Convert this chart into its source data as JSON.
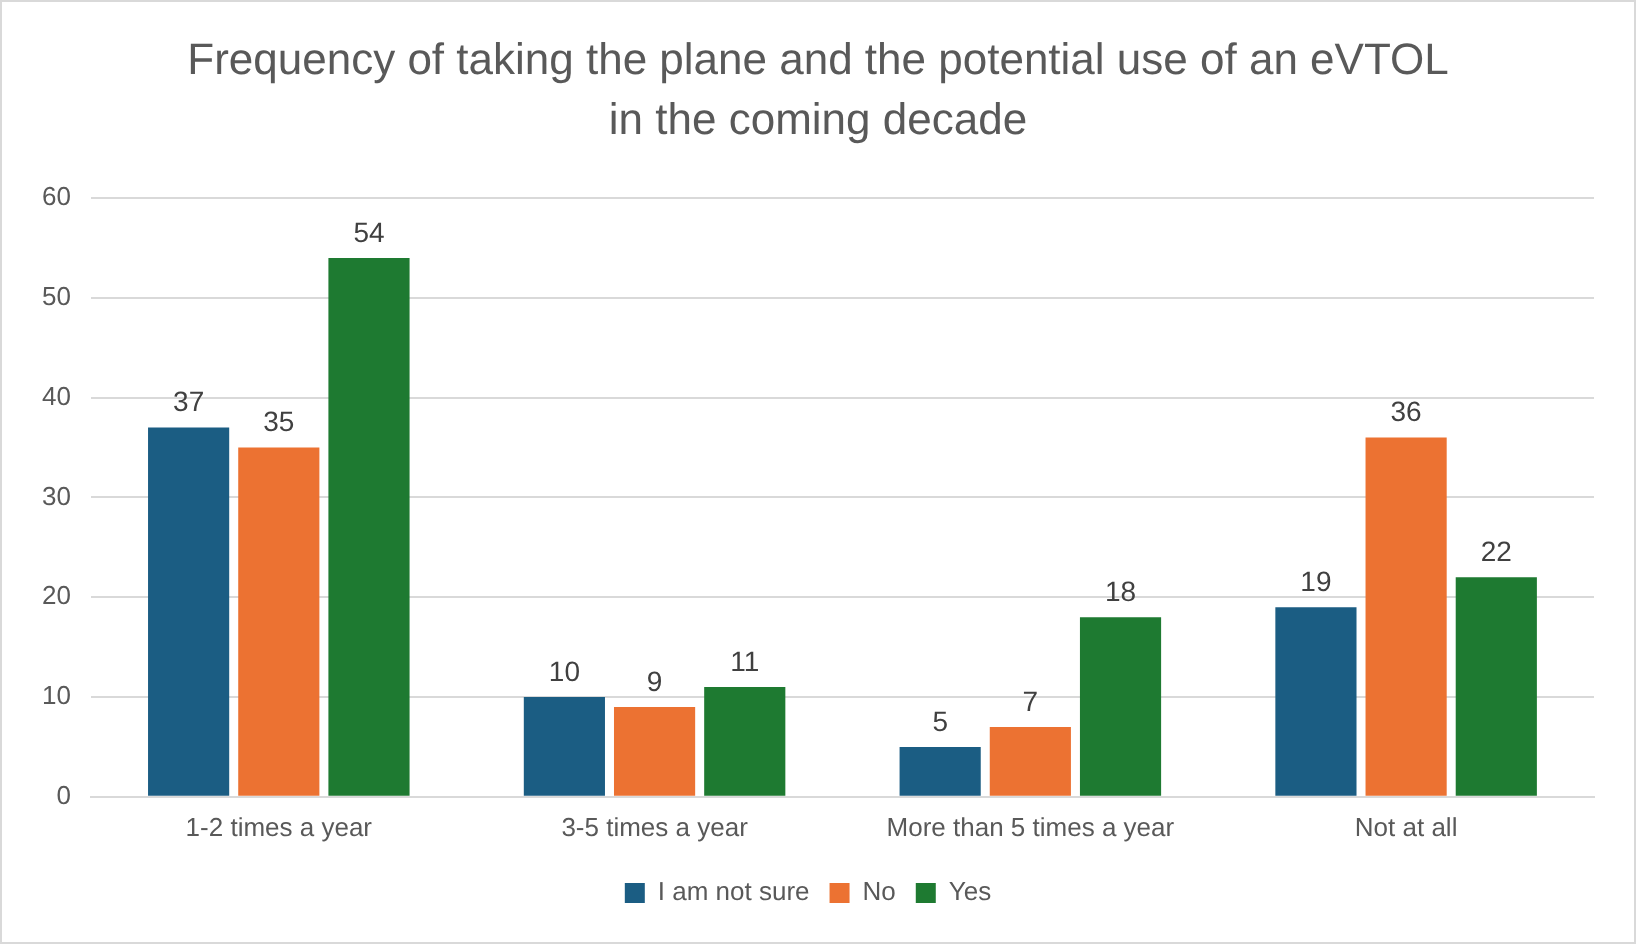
{
  "chart_data": {
    "type": "bar",
    "title": "Frequency of taking the plane and the potential use of an eVTOL in the coming decade",
    "categories": [
      "1-2 times a year",
      "3-5 times a year",
      "More than 5 times a year",
      "Not at all"
    ],
    "series": [
      {
        "name": "I am not sure",
        "color": "#1b5d83",
        "values": [
          37,
          10,
          5,
          19
        ]
      },
      {
        "name": "No",
        "color": "#ec7232",
        "values": [
          35,
          9,
          7,
          36
        ]
      },
      {
        "name": "Yes",
        "color": "#1e7a31",
        "values": [
          54,
          11,
          18,
          22
        ]
      }
    ],
    "ylim": [
      0,
      60
    ],
    "yticks": [
      0,
      10,
      20,
      30,
      40,
      50,
      60
    ],
    "grid": "y",
    "legend": "bottom",
    "data_labels": true
  }
}
